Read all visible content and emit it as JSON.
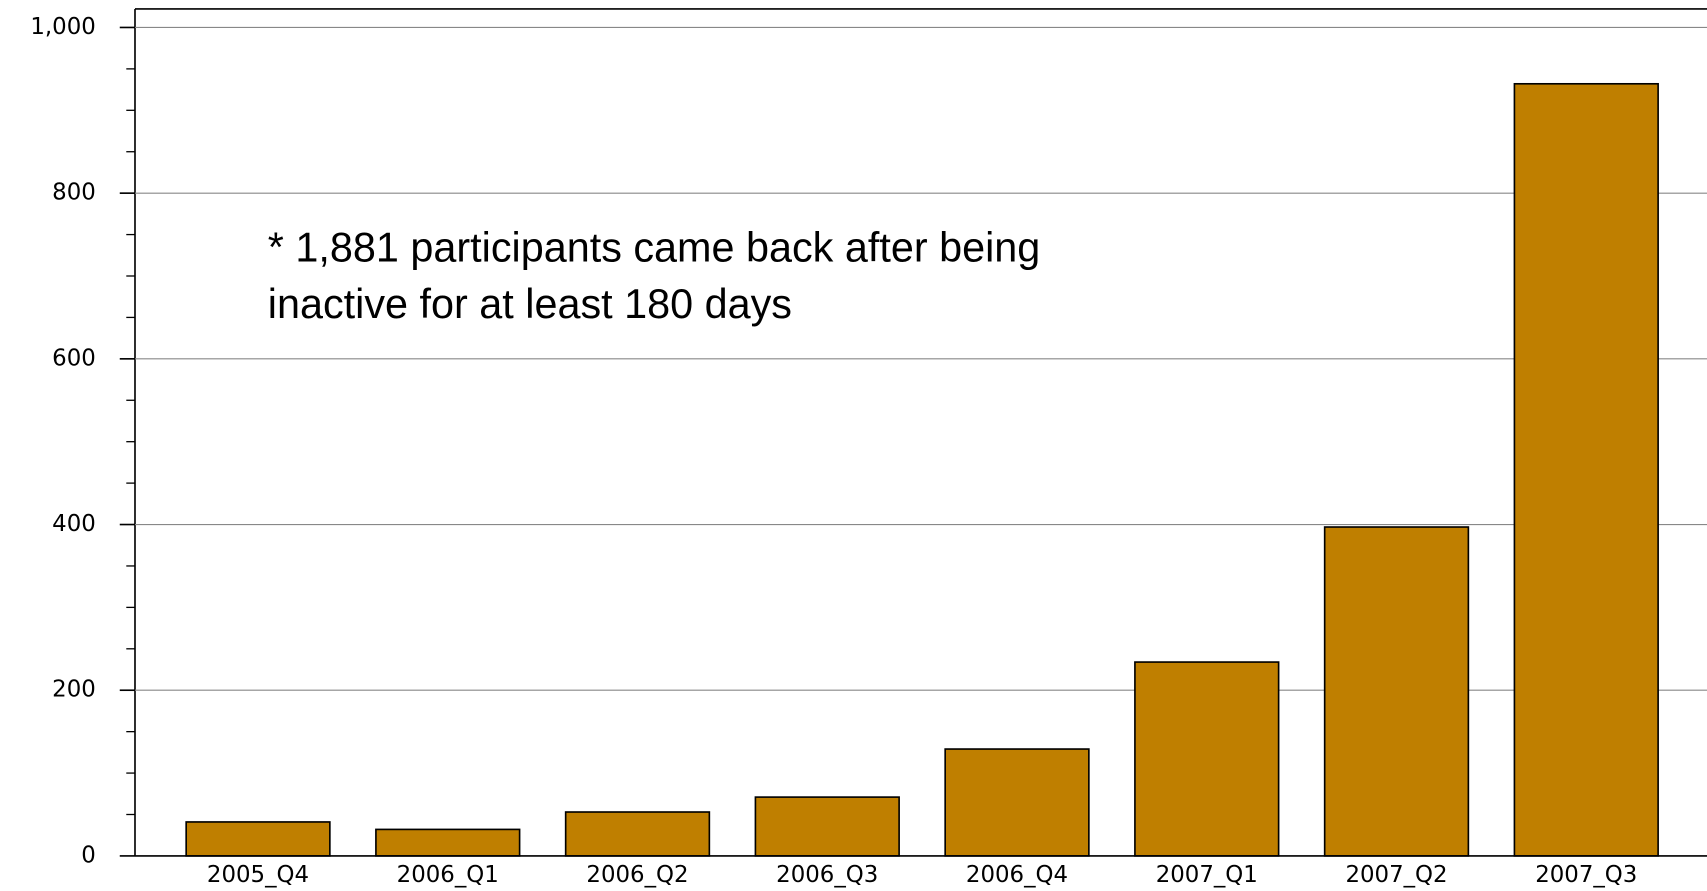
{
  "chart_data": {
    "type": "bar",
    "annotation": [
      "* 1,881 participants came back after being",
      "inactive for at least 180 days"
    ],
    "categories": [
      "2005_Q4",
      "2006_Q1",
      "2006_Q2",
      "2006_Q3",
      "2006_Q4",
      "2007_Q1",
      "2007_Q2",
      "2007_Q3"
    ],
    "values": [
      41,
      32,
      53,
      71,
      129,
      234,
      397,
      932
    ],
    "color": "#bf7f00",
    "ylim": [
      0,
      1000
    ],
    "yticks": [
      0,
      200,
      400,
      600,
      800,
      {
        "value": 1000,
        "label": "1,000"
      }
    ],
    "yticks_minor": [
      50,
      100,
      150,
      250,
      300,
      350,
      450,
      500,
      550,
      650,
      700,
      750,
      850,
      900,
      950
    ],
    "grid": true
  }
}
